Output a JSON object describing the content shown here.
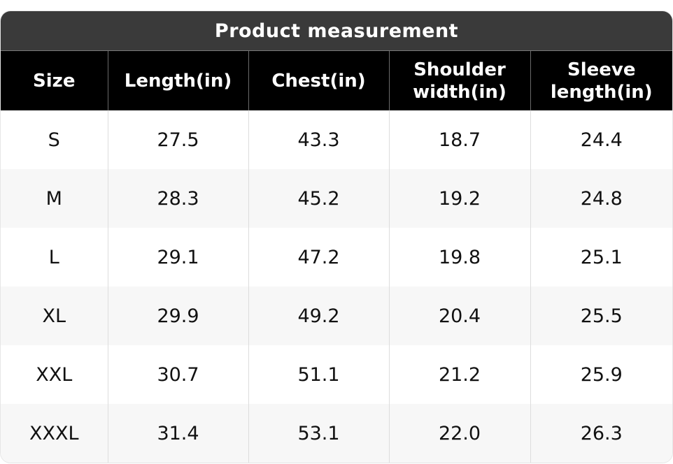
{
  "title": "Product measurement",
  "columns": [
    "Size",
    "Length(in)",
    "Chest(in)",
    "Shoulder\nwidth(in)",
    "Sleeve\nlength(in)"
  ],
  "rows": [
    [
      "S",
      "27.5",
      "43.3",
      "18.7",
      "24.4"
    ],
    [
      "M",
      "28.3",
      "45.2",
      "19.2",
      "24.8"
    ],
    [
      "L",
      "29.1",
      "47.2",
      "19.8",
      "25.1"
    ],
    [
      "XL",
      "29.9",
      "49.2",
      "20.4",
      "25.5"
    ],
    [
      "XXL",
      "30.7",
      "51.1",
      "21.2",
      "25.9"
    ],
    [
      "XXXL",
      "31.4",
      "53.1",
      "22.0",
      "26.3"
    ]
  ],
  "colors": {
    "title_background": "#3a3a3a",
    "header_background": "#000000",
    "header_text": "#ffffff",
    "row_alt_background": "#f7f7f7"
  }
}
